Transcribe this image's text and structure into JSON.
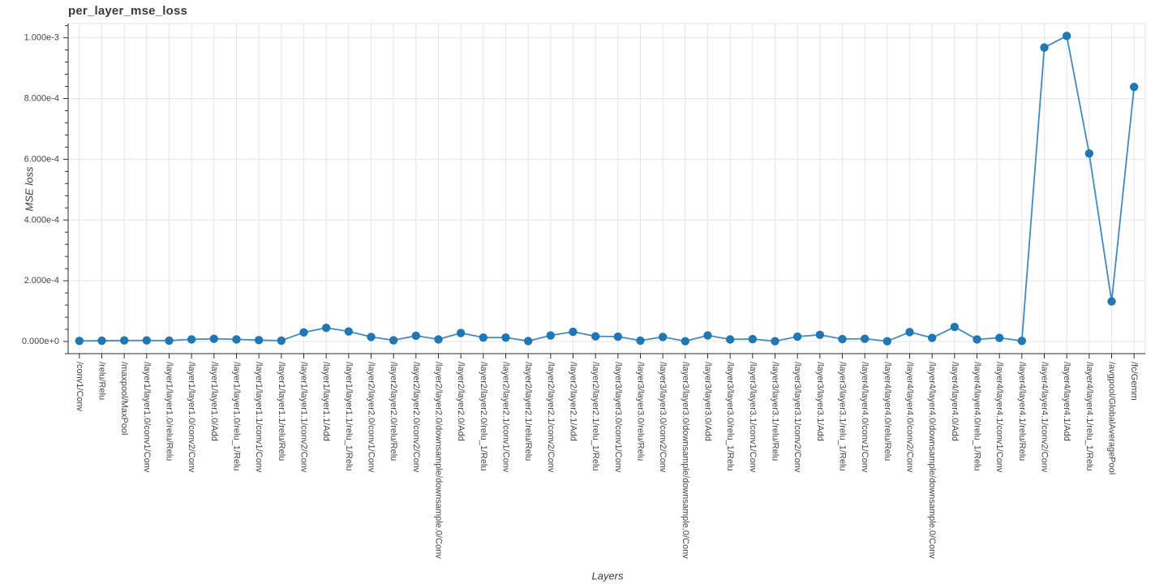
{
  "chart_data": {
    "type": "line",
    "title": "per_layer_mse_loss",
    "xlabel": "Layers",
    "ylabel": "MSE loss",
    "legend": "none",
    "grid": true,
    "ylim": [
      -4e-05,
      0.001047
    ],
    "y_major_ticks": [
      {
        "value": 0.0,
        "label": "0.000e+0"
      },
      {
        "value": 0.0002,
        "label": "2.000e-4"
      },
      {
        "value": 0.0004,
        "label": "4.000e-4"
      },
      {
        "value": 0.0006,
        "label": "6.000e-4"
      },
      {
        "value": 0.0008,
        "label": "8.000e-4"
      },
      {
        "value": 0.001,
        "label": "1.000e-3"
      }
    ],
    "y_minor_tick_step": 4e-05,
    "colors": {
      "series": "#1f77b4",
      "marker": "#1f77b4",
      "grid": "#e6e6e6",
      "axis": "#2b2b2b",
      "text": "#444444",
      "title": "#3a3a3a"
    },
    "categories": [
      "/conv1/Conv",
      "/relu/Relu",
      "/maxpool/MaxPool",
      "/layer1/layer1.0/conv1/Conv",
      "/layer1/layer1.0/relu/Relu",
      "/layer1/layer1.0/conv2/Conv",
      "/layer1/layer1.0/Add",
      "/layer1/layer1.0/relu_1/Relu",
      "/layer1/layer1.1/conv1/Conv",
      "/layer1/layer1.1/relu/Relu",
      "/layer1/layer1.1/conv2/Conv",
      "/layer1/layer1.1/Add",
      "/layer1/layer1.1/relu_1/Relu",
      "/layer2/layer2.0/conv1/Conv",
      "/layer2/layer2.0/relu/Relu",
      "/layer2/layer2.0/conv2/Conv",
      "/layer2/layer2.0/downsample/downsample.0/Conv",
      "/layer2/layer2.0/Add",
      "/layer2/layer2.0/relu_1/Relu",
      "/layer2/layer2.1/conv1/Conv",
      "/layer2/layer2.1/relu/Relu",
      "/layer2/layer2.1/conv2/Conv",
      "/layer2/layer2.1/Add",
      "/layer2/layer2.1/relu_1/Relu",
      "/layer3/layer3.0/conv1/Conv",
      "/layer3/layer3.0/relu/Relu",
      "/layer3/layer3.0/conv2/Conv",
      "/layer3/layer3.0/downsample/downsample.0/Conv",
      "/layer3/layer3.0/Add",
      "/layer3/layer3.0/relu_1/Relu",
      "/layer3/layer3.1/conv1/Conv",
      "/layer3/layer3.1/relu/Relu",
      "/layer3/layer3.1/conv2/Conv",
      "/layer3/layer3.1/Add",
      "/layer3/layer3.1/relu_1/Relu",
      "/layer4/layer4.0/conv1/Conv",
      "/layer4/layer4.0/relu/Relu",
      "/layer4/layer4.0/conv2/Conv",
      "/layer4/layer4.0/downsample/downsample.0/Conv",
      "/layer4/layer4.0/Add",
      "/layer4/layer4.0/relu_1/Relu",
      "/layer4/layer4.1/conv1/Conv",
      "/layer4/layer4.1/relu/Relu",
      "/layer4/layer4.1/conv2/Conv",
      "/layer4/layer4.1/Add",
      "/layer4/layer4.1/relu_1/Relu",
      "/avgpool/GlobalAveragePool",
      "/fc/Gemm"
    ],
    "values": [
      2e-06,
      2.5e-06,
      3.5e-06,
      3.5e-06,
      3e-06,
      7e-06,
      9e-06,
      7e-06,
      4.5e-06,
      3e-06,
      3e-05,
      4.5e-05,
      3.3e-05,
      1.5e-05,
      4e-06,
      1.9e-05,
      7e-06,
      2.8e-05,
      1.3e-05,
      1.3e-05,
      1.5e-06,
      2e-05,
      3.2e-05,
      1.7e-05,
      1.6e-05,
      3e-06,
      1.5e-05,
      1e-06,
      2e-05,
      7e-06,
      8e-06,
      1e-06,
      1.6e-05,
      2.2e-05,
      8e-06,
      9e-06,
      1e-06,
      3.1e-05,
      1.2e-05,
      4.8e-05,
      7e-06,
      1.2e-05,
      2e-06,
      0.000968,
      0.001006,
      0.000619,
      0.000132,
      0.000838
    ]
  }
}
